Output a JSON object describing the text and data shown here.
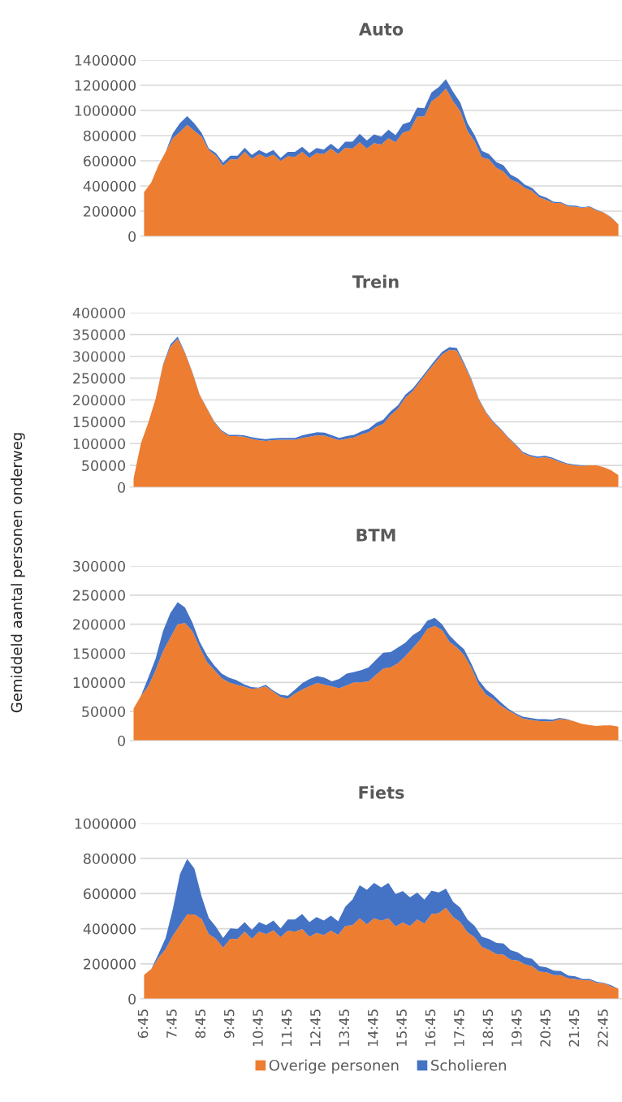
{
  "chart_data": [
    {
      "type": "area",
      "title": "Auto",
      "stacked": true,
      "grid": "y",
      "tick_labels": "y",
      "categories": [
        null,
        null,
        null,
        null,
        null,
        null,
        null,
        null,
        null,
        null,
        null,
        null,
        null,
        null,
        null,
        null,
        null,
        null,
        null,
        null,
        null,
        null,
        null,
        null,
        null,
        null,
        null,
        null,
        null,
        null,
        null,
        null,
        null,
        null,
        null,
        null,
        null,
        null,
        null,
        null,
        null,
        null,
        null,
        null,
        null,
        null,
        null,
        null,
        null,
        null,
        null,
        null,
        null,
        null,
        null,
        null,
        null,
        null,
        null,
        null,
        null,
        null,
        null,
        null,
        null,
        null,
        null
      ],
      "ylim": [
        0,
        1400000
      ],
      "yticks": [
        0,
        200000,
        400000,
        600000,
        800000,
        1000000,
        1200000,
        1400000
      ],
      "series": [
        {
          "color": "#ed7d31",
          "values": [
            352000,
            427000,
            565000,
            671000,
            779000,
            829000,
            885000,
            837000,
            792000,
            686000,
            641000,
            560000,
            611000,
            611000,
            671000,
            616000,
            653000,
            626000,
            648000,
            598000,
            636000,
            631000,
            671000,
            623000,
            661000,
            653000,
            696000,
            653000,
            704000,
            696000,
            746000,
            696000,
            741000,
            729000,
            779000,
            746000,
            822000,
            842000,
            952000,
            952000,
            1073000,
            1113000,
            1174000,
            1073000,
            993000,
            837000,
            754000,
            628000,
            611000,
            545000,
            515000,
            452000,
            427000,
            384000,
            359000,
            309000,
            289000,
            264000,
            264000,
            239000,
            234000,
            226000,
            234000,
            204000,
            188000,
            146000,
            95000
          ]
        },
        {
          "color": "#4472c4",
          "values": [
            0,
            0,
            0,
            0,
            38000,
            71000,
            70000,
            60000,
            30000,
            13000,
            20000,
            26000,
            30000,
            30000,
            33000,
            30000,
            33000,
            32000,
            38000,
            25000,
            35000,
            40000,
            40000,
            38000,
            40000,
            36000,
            40000,
            38000,
            48000,
            56000,
            68000,
            66000,
            68000,
            63000,
            68000,
            58000,
            68000,
            68000,
            71000,
            66000,
            70000,
            73000,
            75000,
            75000,
            70000,
            63000,
            50000,
            51000,
            42000,
            46000,
            50000,
            38000,
            33000,
            26000,
            25000,
            18000,
            18000,
            10000,
            7000,
            7000,
            10000,
            5000,
            5000,
            5000,
            0,
            5000,
            0
          ]
        }
      ]
    },
    {
      "type": "area",
      "title": "Trein",
      "stacked": true,
      "grid": "y",
      "tick_labels": "y",
      "categories": [
        null,
        null,
        null,
        null,
        null,
        null,
        null,
        null,
        null,
        null,
        null,
        null,
        null,
        null,
        null,
        null,
        null,
        null,
        null,
        null,
        null,
        null,
        null,
        null,
        null,
        null,
        null,
        null,
        null,
        null,
        null,
        null,
        null,
        null,
        null,
        null,
        null,
        null,
        null,
        null,
        null,
        null,
        null,
        null,
        null,
        null,
        null,
        null,
        null,
        null,
        null,
        null,
        null,
        null,
        null,
        null,
        null,
        null,
        null,
        null,
        null,
        null,
        null,
        null,
        null,
        null,
        null
      ],
      "ylim": [
        0,
        400000
      ],
      "yticks": [
        0,
        50000,
        100000,
        150000,
        200000,
        250000,
        300000,
        350000,
        400000
      ],
      "series": [
        {
          "color": "#ed7d31",
          "values": [
            20000,
            101000,
            148000,
            203000,
            279000,
            322000,
            340000,
            307000,
            263000,
            211000,
            180000,
            149000,
            128000,
            117000,
            117000,
            116000,
            111000,
            108000,
            106000,
            108000,
            109000,
            109000,
            109000,
            113000,
            116000,
            119000,
            118000,
            113000,
            108000,
            111000,
            114000,
            121000,
            126000,
            138000,
            145000,
            165000,
            180000,
            205000,
            220000,
            242000,
            264000,
            284000,
            304000,
            315000,
            313000,
            281000,
            245000,
            201000,
            170000,
            148000,
            132000,
            113000,
            97000,
            78000,
            71000,
            67000,
            69000,
            65000,
            58000,
            53000,
            50000,
            49000,
            50000,
            50000,
            46000,
            39000,
            28000
          ]
        },
        {
          "color": "#4472c4",
          "values": [
            0,
            0,
            0,
            0,
            2000,
            5000,
            5000,
            2000,
            1000,
            1000,
            1000,
            1000,
            2000,
            3000,
            3000,
            3000,
            4000,
            4000,
            4000,
            4000,
            4000,
            4000,
            4000,
            6000,
            7000,
            7000,
            7000,
            6000,
            5000,
            6000,
            6000,
            7000,
            8000,
            9000,
            10000,
            9000,
            8000,
            7000,
            6000,
            5000,
            5000,
            6000,
            6000,
            6000,
            6000,
            4000,
            3000,
            2000,
            2000,
            2000,
            2000,
            2000,
            2000,
            3000,
            3000,
            3000,
            3000,
            3000,
            3000,
            2000,
            2000,
            1000,
            0,
            0,
            0,
            0,
            0
          ]
        }
      ]
    },
    {
      "type": "area",
      "title": "BTM",
      "ylabel": "Gemiddeld aantal personen onderweg",
      "stacked": true,
      "grid": "y",
      "tick_labels": "y",
      "categories": [
        null,
        null,
        null,
        null,
        null,
        null,
        null,
        null,
        null,
        null,
        null,
        null,
        null,
        null,
        null,
        null,
        null,
        null,
        null,
        null,
        null,
        null,
        null,
        null,
        null,
        null,
        null,
        null,
        null,
        null,
        null,
        null,
        null,
        null,
        null,
        null,
        null,
        null,
        null,
        null,
        null,
        null,
        null,
        null,
        null,
        null,
        null,
        null,
        null,
        null,
        null,
        null,
        null,
        null,
        null,
        null,
        null,
        null,
        null,
        null,
        null,
        null,
        null,
        null,
        null,
        null,
        null
      ],
      "ylim": [
        0,
        300000
      ],
      "yticks": [
        0,
        50000,
        100000,
        150000,
        200000,
        250000,
        300000
      ],
      "series": [
        {
          "color": "#ed7d31",
          "values": [
            55000,
            77000,
            93000,
            121000,
            153000,
            177000,
            200000,
            202000,
            188000,
            160000,
            135000,
            121000,
            107000,
            100000,
            96000,
            93000,
            89000,
            90000,
            93000,
            84000,
            75000,
            72000,
            81000,
            88000,
            94000,
            99000,
            96000,
            93000,
            90000,
            95000,
            100000,
            100000,
            102000,
            113000,
            124000,
            126000,
            133000,
            145000,
            159000,
            173000,
            192000,
            197000,
            190000,
            170000,
            160000,
            147000,
            125000,
            96000,
            79000,
            71000,
            60000,
            52000,
            45000,
            38000,
            36000,
            34000,
            33000,
            33000,
            37000,
            36000,
            33000,
            29000,
            27000,
            25000,
            26000,
            26000,
            24000
          ]
        },
        {
          "color": "#4472c4",
          "values": [
            0,
            0,
            15000,
            20000,
            35000,
            42000,
            38000,
            27000,
            15000,
            10000,
            11000,
            8000,
            8000,
            8000,
            8000,
            4000,
            3000,
            1000,
            3000,
            2000,
            4000,
            5000,
            7000,
            11000,
            12000,
            12000,
            12000,
            9000,
            16000,
            20000,
            18000,
            21000,
            24000,
            26000,
            27000,
            26000,
            27000,
            23000,
            22000,
            16000,
            14000,
            14000,
            10000,
            11000,
            8000,
            10000,
            7000,
            8000,
            9000,
            7000,
            6000,
            3000,
            2000,
            3000,
            3000,
            3000,
            4000,
            3000,
            2000,
            1000,
            0,
            0,
            0,
            0,
            0,
            0,
            0
          ]
        }
      ]
    },
    {
      "type": "area",
      "title": "Fiets",
      "stacked": true,
      "grid": "y",
      "legend": "bottom",
      "categories": [
        "6:45",
        null,
        null,
        null,
        "7:45",
        null,
        null,
        null,
        "8:45",
        null,
        null,
        null,
        "9:45",
        null,
        null,
        null,
        "10:45",
        null,
        null,
        null,
        "11:45",
        null,
        null,
        null,
        "12:45",
        null,
        null,
        null,
        "13:45",
        null,
        null,
        null,
        "14:45",
        null,
        null,
        null,
        "15:45",
        null,
        null,
        null,
        "16:45",
        null,
        null,
        null,
        "17:45",
        null,
        null,
        null,
        "18:45",
        null,
        null,
        null,
        "19:45",
        null,
        null,
        null,
        "20:45",
        null,
        null,
        null,
        "21:45",
        null,
        null,
        null,
        "22:45",
        null,
        null
      ],
      "ylim": [
        0,
        1000000
      ],
      "yticks": [
        0,
        200000,
        400000,
        600000,
        800000,
        1000000
      ],
      "series": [
        {
          "name": "Overige personen",
          "color": "#ed7d31",
          "values": [
            137000,
            170000,
            234000,
            283000,
            360000,
            420000,
            482000,
            482000,
            456000,
            369000,
            343000,
            292000,
            343000,
            341000,
            383000,
            343000,
            383000,
            369000,
            391000,
            352000,
            389000,
            383000,
            398000,
            354000,
            376000,
            363000,
            389000,
            365000,
            416000,
            420000,
            460000,
            425000,
            460000,
            446000,
            460000,
            413000,
            435000,
            416000,
            453000,
            429000,
            484000,
            489000,
            520000,
            466000,
            438000,
            380000,
            351000,
            296000,
            279000,
            256000,
            252000,
            223000,
            219000,
            197000,
            186000,
            155000,
            152000,
            135000,
            135000,
            117000,
            113000,
            106000,
            106000,
            91000,
            89000,
            71000,
            58000
          ]
        },
        {
          "name": "Scholieren",
          "color": "#4472c4",
          "values": [
            0,
            0,
            22000,
            64000,
            151000,
            292000,
            316000,
            261000,
            128000,
            93000,
            68000,
            55000,
            59000,
            57000,
            55000,
            50000,
            55000,
            51000,
            56000,
            50000,
            64000,
            70000,
            86000,
            84000,
            90000,
            84000,
            86000,
            77000,
            110000,
            146000,
            188000,
            196000,
            201000,
            189000,
            201000,
            184000,
            180000,
            163000,
            153000,
            137000,
            133000,
            117000,
            108000,
            87000,
            82000,
            73000,
            65000,
            58000,
            62000,
            64000,
            64000,
            55000,
            46000,
            40000,
            42000,
            31000,
            27000,
            26000,
            24000,
            16000,
            15000,
            7000,
            7000,
            6000,
            2000,
            6000,
            0
          ]
        }
      ]
    }
  ]
}
